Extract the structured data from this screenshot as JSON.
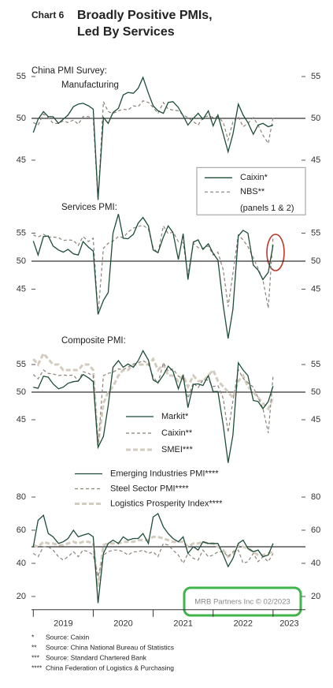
{
  "header": {
    "chart_label": "Chart 6",
    "title": [
      "Broadly Positive PMIs,",
      "Led By Services"
    ]
  },
  "chart_data": [
    {
      "type": "line",
      "heading": "China PMI Survey:",
      "title": "Manufacturing",
      "x": [
        2019,
        2019.08,
        2019.17,
        2019.25,
        2019.33,
        2019.42,
        2019.5,
        2019.58,
        2019.67,
        2019.75,
        2019.83,
        2019.92,
        2020,
        2020.08,
        2020.17,
        2020.25,
        2020.33,
        2020.42,
        2020.5,
        2020.58,
        2020.67,
        2020.75,
        2020.83,
        2020.92,
        2021,
        2021.08,
        2021.17,
        2021.25,
        2021.33,
        2021.42,
        2021.5,
        2021.58,
        2021.67,
        2021.75,
        2021.83,
        2021.92,
        2022,
        2022.08,
        2022.17,
        2022.25,
        2022.33,
        2022.42,
        2022.5,
        2022.58,
        2022.67,
        2022.75,
        2022.83,
        2022.92,
        2023
      ],
      "xlim": [
        2018.97,
        2023.54
      ],
      "ylim": [
        39.5,
        57
      ],
      "yticks": [
        45,
        50,
        55
      ],
      "refline": 50,
      "legend": "lower right",
      "legend_frame": true,
      "legend_note": "(panels 1 & 2)",
      "series": [
        {
          "name": "Caixin*",
          "color": "#1e4d38",
          "style": "solid",
          "values": [
            48.3,
            49.9,
            50.8,
            50.2,
            50.2,
            49.4,
            49.9,
            50.4,
            51.4,
            51.7,
            51.8,
            51.5,
            51.1,
            40.3,
            50.1,
            49.4,
            50.7,
            51.2,
            52.8,
            53.1,
            53.0,
            53.6,
            54.9,
            53.0,
            51.5,
            50.9,
            50.6,
            51.9,
            52.0,
            51.3,
            50.3,
            49.2,
            50.0,
            50.6,
            49.9,
            50.9,
            49.1,
            50.4,
            48.1,
            46.0,
            48.1,
            51.7,
            50.4,
            49.5,
            48.1,
            49.2,
            49.4,
            49.0,
            49.2
          ]
        },
        {
          "name": "NBS**",
          "color": "#8c8279",
          "style": "dashed",
          "values": [
            49.5,
            49.2,
            50.5,
            50.1,
            49.4,
            49.4,
            49.7,
            49.5,
            49.8,
            49.3,
            50.2,
            50.2,
            50.0,
            40.2,
            52.0,
            50.8,
            50.6,
            50.9,
            51.1,
            51.0,
            51.5,
            51.4,
            52.1,
            51.9,
            51.3,
            50.6,
            51.9,
            51.1,
            51.0,
            50.9,
            50.4,
            50.1,
            49.6,
            49.2,
            50.1,
            50.3,
            50.1,
            50.2,
            49.5,
            47.4,
            49.6,
            50.2,
            49.0,
            49.4,
            50.1,
            49.2,
            48.0,
            47.0,
            50.1
          ]
        }
      ]
    },
    {
      "type": "line",
      "title": "Services PMI:",
      "x": [
        2019,
        2019.08,
        2019.17,
        2019.25,
        2019.33,
        2019.42,
        2019.5,
        2019.58,
        2019.67,
        2019.75,
        2019.83,
        2019.92,
        2020,
        2020.08,
        2020.17,
        2020.25,
        2020.33,
        2020.42,
        2020.5,
        2020.58,
        2020.67,
        2020.75,
        2020.83,
        2020.92,
        2021,
        2021.08,
        2021.17,
        2021.25,
        2021.33,
        2021.42,
        2021.5,
        2021.58,
        2021.67,
        2021.75,
        2021.83,
        2021.92,
        2022,
        2022.08,
        2022.17,
        2022.25,
        2022.33,
        2022.42,
        2022.5,
        2022.58,
        2022.67,
        2022.75,
        2022.83,
        2022.92,
        2023
      ],
      "xlim": [
        2018.97,
        2023.54
      ],
      "ylim": [
        36,
        57.5
      ],
      "yticks": [
        45,
        50,
        55
      ],
      "refline": 50,
      "series": [
        {
          "color": "#1e4d38",
          "style": "solid",
          "values": [
            53.6,
            51.1,
            54.4,
            54.5,
            52.7,
            52.0,
            51.6,
            52.1,
            51.3,
            51.1,
            53.5,
            52.5,
            51.8,
            40.5,
            43.0,
            44.4,
            55.0,
            58.4,
            54.1,
            54.0,
            54.8,
            56.8,
            57.8,
            56.3,
            52.0,
            51.5,
            54.3,
            56.3,
            55.1,
            50.3,
            54.9,
            46.7,
            53.4,
            53.8,
            52.1,
            53.1,
            51.4,
            50.2,
            42.0,
            36.2,
            41.4,
            54.5,
            55.5,
            55.0,
            49.3,
            48.4,
            46.7,
            48.0,
            52.9
          ]
        },
        {
          "color": "#8c8279",
          "style": "dashed",
          "values": [
            54.7,
            54.3,
            54.8,
            54.3,
            54.3,
            54.2,
            53.7,
            53.8,
            53.7,
            52.8,
            54.4,
            53.5,
            54.1,
            40.5,
            52.3,
            53.2,
            53.6,
            54.4,
            54.2,
            55.2,
            55.9,
            56.2,
            56.4,
            55.7,
            52.4,
            51.4,
            56.3,
            54.9,
            55.2,
            53.5,
            53.3,
            47.5,
            53.2,
            52.4,
            52.3,
            52.7,
            51.1,
            51.6,
            48.4,
            41.9,
            47.8,
            54.7,
            53.8,
            52.6,
            50.6,
            48.7,
            46.7,
            41.6,
            54.4
          ]
        }
      ]
    },
    {
      "type": "line",
      "title": "Composite PMI:",
      "x": [
        2019,
        2019.08,
        2019.17,
        2019.25,
        2019.33,
        2019.42,
        2019.5,
        2019.58,
        2019.67,
        2019.75,
        2019.83,
        2019.92,
        2020,
        2020.08,
        2020.17,
        2020.25,
        2020.33,
        2020.42,
        2020.5,
        2020.58,
        2020.67,
        2020.75,
        2020.83,
        2020.92,
        2021,
        2021.08,
        2021.17,
        2021.25,
        2021.33,
        2021.42,
        2021.5,
        2021.58,
        2021.67,
        2021.75,
        2021.83,
        2021.92,
        2022,
        2022.08,
        2022.17,
        2022.25,
        2022.33,
        2022.42,
        2022.5,
        2022.58,
        2022.67,
        2022.75,
        2022.83,
        2022.92,
        2023
      ],
      "xlim": [
        2018.97,
        2023.54
      ],
      "ylim": [
        36,
        58
      ],
      "yticks": [
        45,
        50,
        55
      ],
      "refline": 50,
      "legend": "lower center",
      "legend_frame": false,
      "series": [
        {
          "name": "Markit*",
          "color": "#1e4d38",
          "style": "solid",
          "values": [
            50.9,
            50.7,
            52.9,
            52.7,
            51.5,
            50.6,
            50.9,
            51.6,
            51.9,
            52.0,
            53.2,
            52.6,
            51.9,
            40.0,
            42.0,
            47.6,
            54.5,
            55.7,
            54.5,
            55.1,
            54.5,
            55.7,
            57.5,
            55.8,
            52.2,
            51.7,
            53.1,
            54.7,
            53.8,
            50.6,
            53.1,
            47.2,
            51.4,
            51.5,
            51.2,
            53.0,
            50.1,
            50.1,
            43.9,
            37.2,
            42.2,
            55.3,
            54.0,
            53.0,
            48.5,
            48.3,
            47.0,
            48.3,
            51.1
          ]
        },
        {
          "name": "Caixin**",
          "color": "#8c8279",
          "style": "dashed",
          "values": [
            53.2,
            52.4,
            54.0,
            53.4,
            53.3,
            53.0,
            53.1,
            53.0,
            53.1,
            52.0,
            53.7,
            53.4,
            53.0,
            40.0,
            53.0,
            53.4,
            53.6,
            54.2,
            54.1,
            54.5,
            55.1,
            55.3,
            55.7,
            55.1,
            52.8,
            51.6,
            55.3,
            53.8,
            54.2,
            52.9,
            52.4,
            48.9,
            51.7,
            50.8,
            52.2,
            52.2,
            51.0,
            51.2,
            48.8,
            42.7,
            48.4,
            54.1,
            52.5,
            51.7,
            50.9,
            49.0,
            47.1,
            42.6,
            52.9
          ]
        },
        {
          "name": "SMEI***",
          "color": "#d3cbbd",
          "style": "thick-dashed",
          "values": [
            56,
            55,
            57,
            56,
            55,
            55,
            54,
            54,
            54,
            54,
            55,
            55,
            54,
            40.5,
            48,
            50,
            51,
            53,
            54,
            54,
            55,
            55,
            55,
            55,
            56,
            54,
            55,
            53,
            53,
            52,
            53,
            51,
            53,
            52,
            52,
            53,
            54,
            52,
            51,
            50,
            49,
            52,
            53,
            51,
            50,
            49,
            48,
            47,
            49
          ]
        }
      ]
    },
    {
      "type": "line",
      "x": [
        2019,
        2019.08,
        2019.17,
        2019.25,
        2019.33,
        2019.42,
        2019.5,
        2019.58,
        2019.67,
        2019.75,
        2019.83,
        2019.92,
        2020,
        2020.08,
        2020.17,
        2020.25,
        2020.33,
        2020.42,
        2020.5,
        2020.58,
        2020.67,
        2020.75,
        2020.83,
        2020.92,
        2021,
        2021.08,
        2021.17,
        2021.25,
        2021.33,
        2021.42,
        2021.5,
        2021.58,
        2021.67,
        2021.75,
        2021.83,
        2021.92,
        2022,
        2022.08,
        2022.17,
        2022.25,
        2022.33,
        2022.42,
        2022.5,
        2022.58,
        2022.67,
        2022.75,
        2022.83,
        2022.92,
        2023
      ],
      "xlim": [
        2018.97,
        2023.54
      ],
      "xticks": [
        2019,
        2020,
        2021,
        2022,
        2023
      ],
      "ylim": [
        12,
        85
      ],
      "yticks": [
        20,
        40,
        60,
        80
      ],
      "refline": 50,
      "legend": "upper center",
      "legend_frame": false,
      "series": [
        {
          "name": "Emerging Industries PMI****",
          "color": "#1e4d38",
          "style": "solid",
          "values": [
            50,
            66,
            69,
            58,
            56,
            52,
            53,
            55,
            60,
            56,
            57,
            58,
            56,
            16,
            46,
            52,
            54,
            52,
            56,
            54,
            55,
            55,
            58,
            52,
            68,
            70,
            62,
            58,
            55,
            53,
            56,
            46,
            50,
            48,
            53,
            52,
            52,
            52,
            45,
            38,
            43,
            52,
            54,
            49,
            47,
            48,
            44,
            45,
            52
          ]
        },
        {
          "name": "Steel Sector PMI****",
          "color": "#8c8279",
          "style": "dashed",
          "values": [
            46,
            44,
            50,
            50,
            48,
            44,
            42,
            44,
            47,
            44,
            48,
            47,
            45,
            32,
            45,
            47,
            48,
            48,
            47,
            45,
            47,
            47,
            48,
            46,
            47,
            44,
            52,
            51,
            48,
            45,
            40,
            46,
            43,
            42,
            48,
            44,
            45,
            47,
            47,
            44,
            47,
            48,
            40,
            41,
            46,
            41,
            44,
            41,
            46
          ]
        },
        {
          "name": "Logistics Prosperity Index****",
          "color": "#d3cbbd",
          "style": "thick-dashed",
          "values": [
            51,
            50,
            53,
            52,
            52,
            51,
            51,
            52,
            53,
            52,
            53,
            53,
            52,
            26,
            51,
            52,
            52,
            52,
            53,
            53,
            53,
            54,
            54,
            54,
            56,
            56,
            55,
            54,
            53,
            53,
            53,
            50,
            52,
            52,
            53,
            52,
            52,
            50,
            48,
            44,
            46,
            51,
            50,
            49,
            47,
            45,
            45,
            46,
            47
          ]
        }
      ]
    }
  ],
  "watermark": "MRB Partners Inc © 02/2023",
  "footnotes": [
    {
      "mark": "*",
      "text": "Source: Caixin"
    },
    {
      "mark": "**",
      "text": "Source: China National Bureau of Statistics"
    },
    {
      "mark": "***",
      "text": "Source: Standard Chartered Bank"
    },
    {
      "mark": "****",
      "text": "China Federation of Logistics & Purchasing"
    }
  ]
}
